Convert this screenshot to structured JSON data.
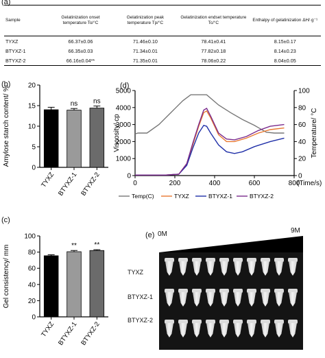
{
  "panel_labels": {
    "a": "(a)",
    "b": "(b)",
    "c": "(c)",
    "d": "(d)",
    "e": "(e)"
  },
  "table": {
    "headers": [
      "Sample",
      "Gelatinization onset temperature To/°C",
      "Gelatinization peak temperature Tp/°C",
      "Gelatinization endset temperature Tc/°C",
      "Enthalpy of gelatinization ΔH/·g⁻¹"
    ],
    "rows": [
      [
        "TYXZ",
        "66.37±0.06",
        "71.46±0.10",
        "78.41±0.41",
        "8.15±0.17"
      ],
      [
        "BTYXZ-1",
        "66.35±0.03",
        "71.34±0.01",
        "77.82±0.18",
        "8.14±0.23"
      ],
      [
        "BTYXZ-2",
        "66.16±0.04**",
        "71.35±0.01",
        "78.06±0.22",
        "8.04±0.05"
      ]
    ]
  },
  "chart_data": [
    {
      "type": "bar",
      "categories": [
        "TYXZ",
        "BTYXZ-1",
        "BTYXZ-2"
      ],
      "values": [
        14.0,
        13.9,
        14.4
      ],
      "errors": [
        0.6,
        0.4,
        0.5
      ],
      "annotations": [
        "",
        "ns",
        "ns"
      ],
      "ylabel": "Amylose starch content/ %",
      "ylim": [
        0,
        20
      ],
      "yticks": [
        0,
        5,
        10,
        15,
        20
      ],
      "colors": [
        "#000000",
        "#9a9a9a",
        "#6b6b6b"
      ]
    },
    {
      "type": "bar",
      "categories": [
        "TYXZ",
        "BTYXZ-1",
        "BTYXZ-2"
      ],
      "values": [
        75.5,
        80.5,
        82.0
      ],
      "errors": [
        1.2,
        1.5,
        1.0
      ],
      "annotations": [
        "",
        "**",
        "**"
      ],
      "ylabel": "Gel consistency/ mm",
      "ylim": [
        0,
        100
      ],
      "yticks": [
        0,
        20,
        40,
        60,
        80,
        100
      ],
      "colors": [
        "#000000",
        "#9a9a9a",
        "#6b6b6b"
      ]
    },
    {
      "type": "line",
      "xlabel": "(Time/s)",
      "ylabel": "Viscosity/ cp",
      "y2label": "Temperature/ °C",
      "xlim": [
        0,
        800
      ],
      "ylim": [
        0,
        5000
      ],
      "y2lim": [
        0,
        100
      ],
      "xticks": [
        0,
        200,
        400,
        600,
        800
      ],
      "yticks": [
        0,
        1000,
        2000,
        3000,
        4000,
        5000
      ],
      "y2ticks": [
        0,
        20,
        40,
        60,
        80,
        100
      ],
      "series": [
        {
          "name": "Temp(C)",
          "color": "#777777",
          "axis": "y2",
          "x": [
            0,
            15,
            60,
            120,
            180,
            240,
            280,
            300,
            320,
            360,
            420,
            480,
            540,
            600,
            660,
            700,
            740,
            750
          ],
          "y": [
            49,
            50,
            50,
            60,
            74,
            88,
            95,
            95,
            95,
            95,
            83,
            74,
            66,
            59,
            51,
            50,
            50,
            50
          ]
        },
        {
          "name": "TYXZ",
          "color": "#e8782f",
          "axis": "y",
          "x": [
            0,
            150,
            220,
            260,
            290,
            320,
            345,
            360,
            380,
            420,
            460,
            500,
            560,
            620,
            680,
            750
          ],
          "y": [
            30,
            30,
            80,
            700,
            1800,
            2900,
            3700,
            3800,
            3400,
            2400,
            2000,
            2000,
            2200,
            2500,
            2700,
            2800
          ]
        },
        {
          "name": "BTYXZ-1",
          "color": "#1f2fa8",
          "axis": "y",
          "x": [
            0,
            150,
            220,
            260,
            290,
            320,
            345,
            360,
            380,
            420,
            460,
            500,
            540,
            600,
            680,
            750
          ],
          "y": [
            30,
            30,
            80,
            600,
            1600,
            2500,
            2950,
            2900,
            2500,
            1800,
            1400,
            1300,
            1400,
            1700,
            2000,
            2200
          ]
        },
        {
          "name": "BTYXZ-2",
          "color": "#7a2a8c",
          "axis": "y",
          "x": [
            0,
            150,
            220,
            260,
            290,
            320,
            345,
            360,
            380,
            420,
            460,
            500,
            560,
            620,
            680,
            750
          ],
          "y": [
            30,
            30,
            80,
            700,
            1900,
            3000,
            3850,
            3950,
            3500,
            2500,
            2150,
            2100,
            2300,
            2650,
            2900,
            3000
          ]
        }
      ]
    }
  ],
  "photo": {
    "left_label": "0M",
    "right_label": "9M",
    "rows": [
      "TYXZ",
      "BTYXZ-1",
      "BTYXZ-2"
    ],
    "tube_count": 10
  }
}
